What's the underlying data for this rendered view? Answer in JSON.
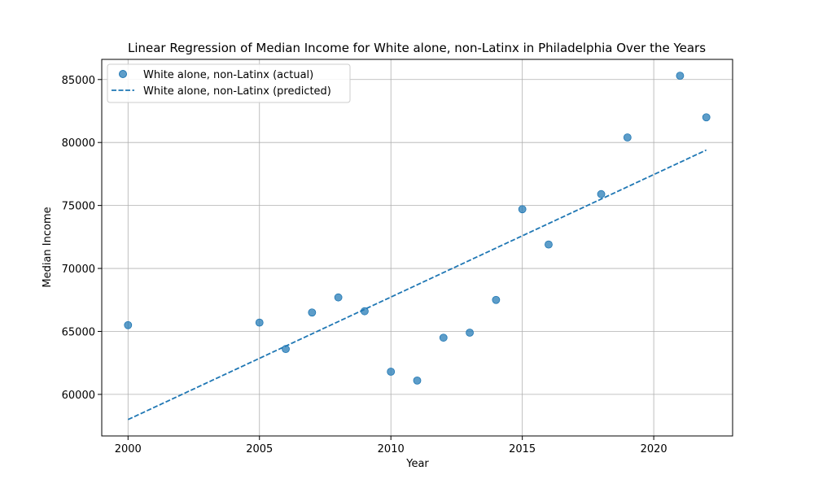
{
  "colors": {
    "series": "#1f77b4",
    "grid": "#b0b0b0",
    "axis": "#000000",
    "background": "#ffffff"
  },
  "chart_data": {
    "type": "scatter",
    "title": "Linear Regression of Median Income for White alone, non-Latinx in Philadelphia Over the Years",
    "xlabel": "Year",
    "ylabel": "Median Income",
    "xlim": [
      1999,
      2023
    ],
    "ylim": [
      56700,
      86600
    ],
    "xticks": [
      2000,
      2005,
      2010,
      2015,
      2020
    ],
    "yticks": [
      60000,
      65000,
      70000,
      75000,
      80000,
      85000
    ],
    "grid": true,
    "legend_position": "top-left",
    "series": [
      {
        "name": "White alone, non-Latinx (actual)",
        "kind": "scatter",
        "x": [
          2000,
          2005,
          2006,
          2007,
          2008,
          2009,
          2010,
          2011,
          2012,
          2013,
          2014,
          2015,
          2016,
          2018,
          2019,
          2021,
          2022
        ],
        "y": [
          65500,
          65700,
          63600,
          66500,
          67700,
          66600,
          61800,
          61100,
          64500,
          64900,
          67500,
          74700,
          71900,
          75900,
          80400,
          85300,
          82000
        ]
      },
      {
        "name": "White alone, non-Latinx (predicted)",
        "kind": "line",
        "style": "dashed",
        "x": [
          2000,
          2022
        ],
        "y": [
          58000,
          79400
        ]
      }
    ]
  }
}
